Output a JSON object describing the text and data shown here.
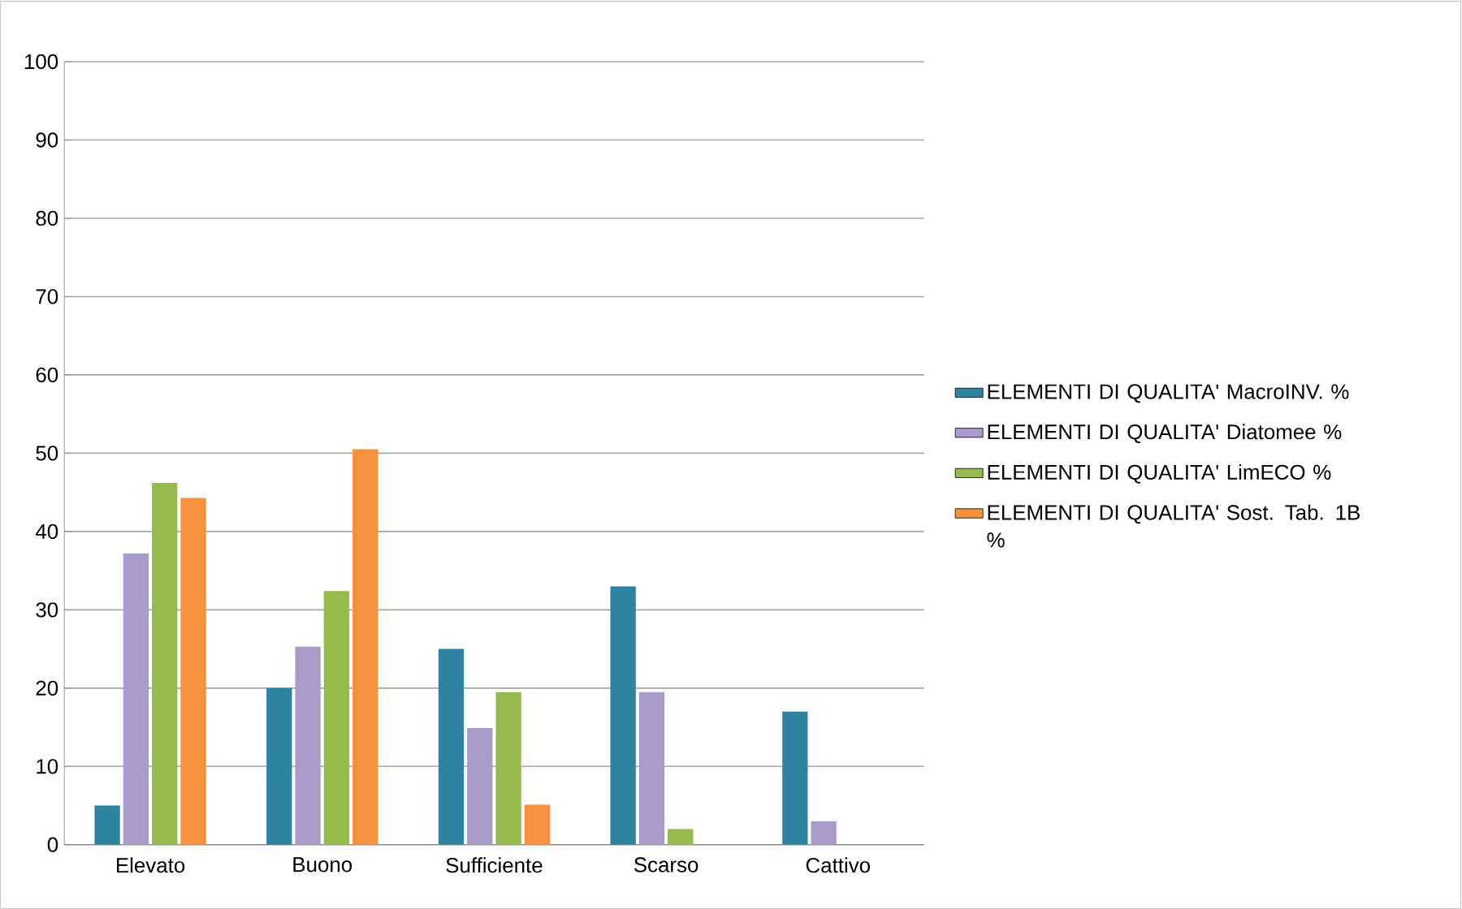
{
  "chart_data": {
    "type": "bar",
    "categories": [
      "Elevato",
      "Buono",
      "Sufficiente",
      "Scarso",
      "Cattivo"
    ],
    "series": [
      {
        "name": "ELEMENTI DI QUALITA' MacroINV. %",
        "color": "#2e84a0",
        "values": [
          5,
          20,
          25,
          33,
          17
        ]
      },
      {
        "name": "ELEMENTI DI QUALITA' Diatomee %",
        "color": "#a99bc9",
        "values": [
          37.2,
          25.3,
          14.9,
          19.5,
          3
        ]
      },
      {
        "name": "ELEMENTI DI QUALITA' LimECO %",
        "color": "#95bb4f",
        "values": [
          46.2,
          32.4,
          19.5,
          2,
          0
        ]
      },
      {
        "name": "ELEMENTI DI QUALITA' Sost. Tab. 1B %",
        "color": "#f7913d",
        "values": [
          44.3,
          50.5,
          5.1,
          0,
          0
        ]
      }
    ],
    "ylim": [
      0,
      100
    ],
    "yticks": [
      0,
      10,
      20,
      30,
      40,
      50,
      60,
      70,
      80,
      90,
      100
    ],
    "grid": "y",
    "legend": "right"
  }
}
